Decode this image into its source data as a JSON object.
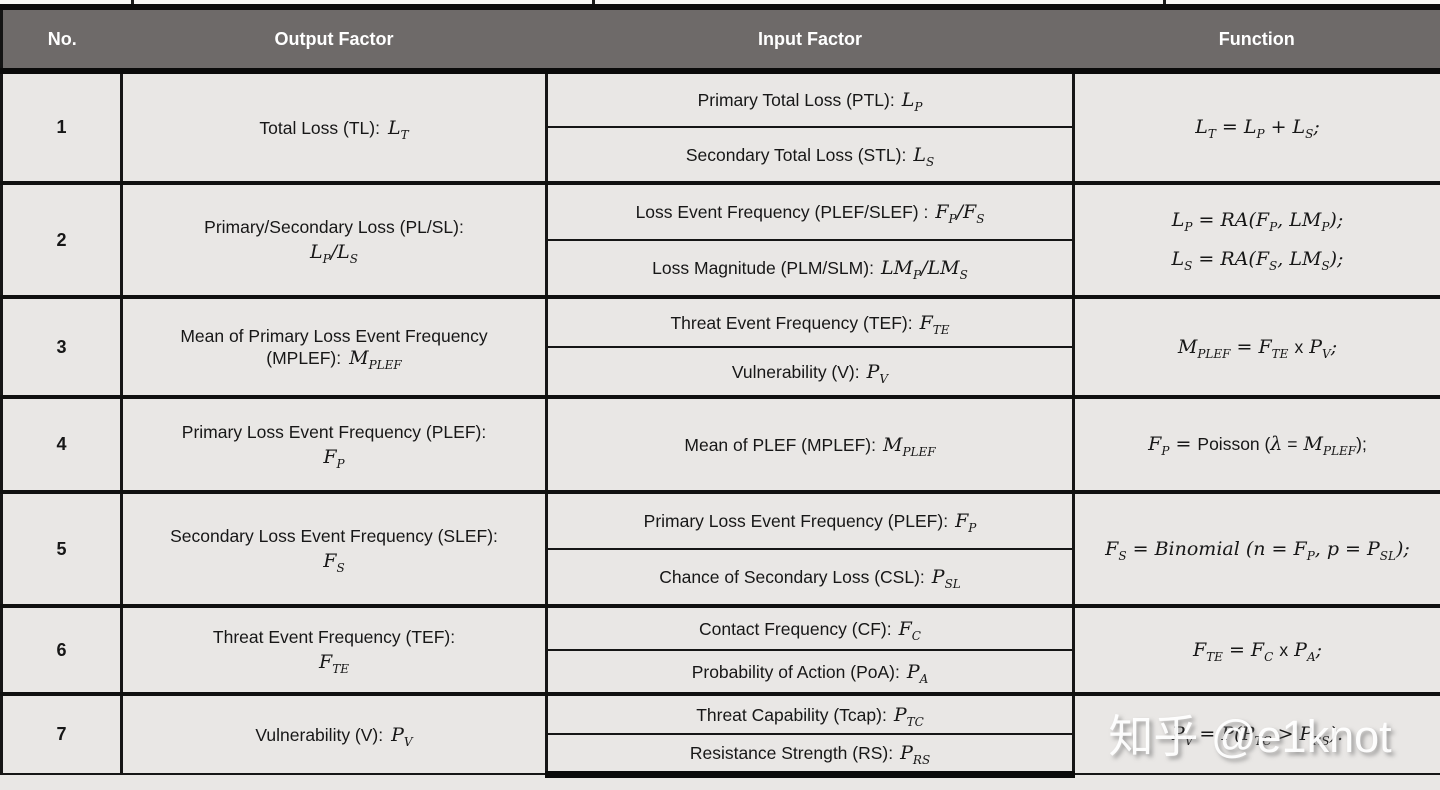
{
  "colors": {
    "header_bg": "#6e6a69",
    "header_text": "#ffffff",
    "cell_bg": "#e9e7e5",
    "border": "#141414",
    "text": "#171717"
  },
  "header": {
    "no": "No.",
    "output": "Output Factor",
    "input": "Input Factor",
    "function": "Function"
  },
  "watermark": "知乎 @e1knot",
  "rows": [
    {
      "no": "1",
      "output": {
        "text": "Total Loss (TL):",
        "math": "L_{T}"
      },
      "inputs": [
        {
          "text": "Primary Total Loss (PTL):",
          "math": "L_{P}"
        },
        {
          "text": "Secondary Total Loss (STL):",
          "math": "L_{S}"
        }
      ],
      "function": [
        "L_{T} = L_{P} + L_{S};"
      ]
    },
    {
      "no": "2",
      "output": {
        "text": "Primary/Secondary Loss (PL/SL):",
        "math": "L_{P}/L_{S}"
      },
      "inputs": [
        {
          "text": "Loss Event Frequency (PLEF/SLEF) :",
          "math": "F_{P}/F_{S}"
        },
        {
          "text": "Loss Magnitude (PLM/SLM):",
          "math": "LM_{P}/LM_{S}"
        }
      ],
      "function": [
        "L_{P} = RA(F_{P}, LM_{P});",
        "L_{S} = RA(F_{S}, LM_{S});"
      ]
    },
    {
      "no": "3",
      "output": {
        "text": "Mean of Primary Loss Event Frequency (MPLEF):",
        "math": "M_{PLEF}"
      },
      "inputs": [
        {
          "text": "Threat Event Frequency (TEF):",
          "math": "F_{TE}"
        },
        {
          "text": "Vulnerability (V):",
          "math": "P_{V}"
        }
      ],
      "function": [
        "M_{PLEF} = F_{TE} \\rm{x} P_{V};"
      ]
    },
    {
      "no": "4",
      "output": {
        "text": "Primary Loss Event Frequency (PLEF):",
        "math": "F_{P}"
      },
      "inputs": [
        {
          "text": "Mean of PLEF (MPLEF):",
          "math": "M_{PLEF}"
        }
      ],
      "function": [
        "F_{P} = \\rm{Poisson (}λ\\rm{ =} M_{PLEF}\\rm{);}"
      ]
    },
    {
      "no": "5",
      "output": {
        "text": "Secondary Loss Event Frequency (SLEF):",
        "math": "F_{S}"
      },
      "inputs": [
        {
          "text": "Primary Loss Event Frequency (PLEF):",
          "math": "F_{P}"
        },
        {
          "text": "Chance of Secondary Loss (CSL):",
          "math": "P_{SL}"
        }
      ],
      "function": [
        "F_{S} = Binomial (n = F_{P}, p = P_{SL});"
      ]
    },
    {
      "no": "6",
      "output": {
        "text": "Threat Event Frequency (TEF):",
        "math": "F_{TE}"
      },
      "inputs": [
        {
          "text": "Contact Frequency (CF):",
          "math": "F_{C}"
        },
        {
          "text": "Probability of Action (PoA):",
          "math": "P_{A}"
        }
      ],
      "function": [
        "F_{TE} = F_{C} \\rm{x} P_{A};"
      ]
    },
    {
      "no": "7",
      "output": {
        "text": "Vulnerability (V):",
        "math": "P_{V}"
      },
      "inputs": [
        {
          "text": "Threat Capability (Tcap):",
          "math": "P_{TC}"
        },
        {
          "text": "Resistance Strength (RS):",
          "math": "P_{RS}"
        }
      ],
      "function": [
        "P_{V} = P(P_{TC} > P_{RS})."
      ]
    }
  ]
}
